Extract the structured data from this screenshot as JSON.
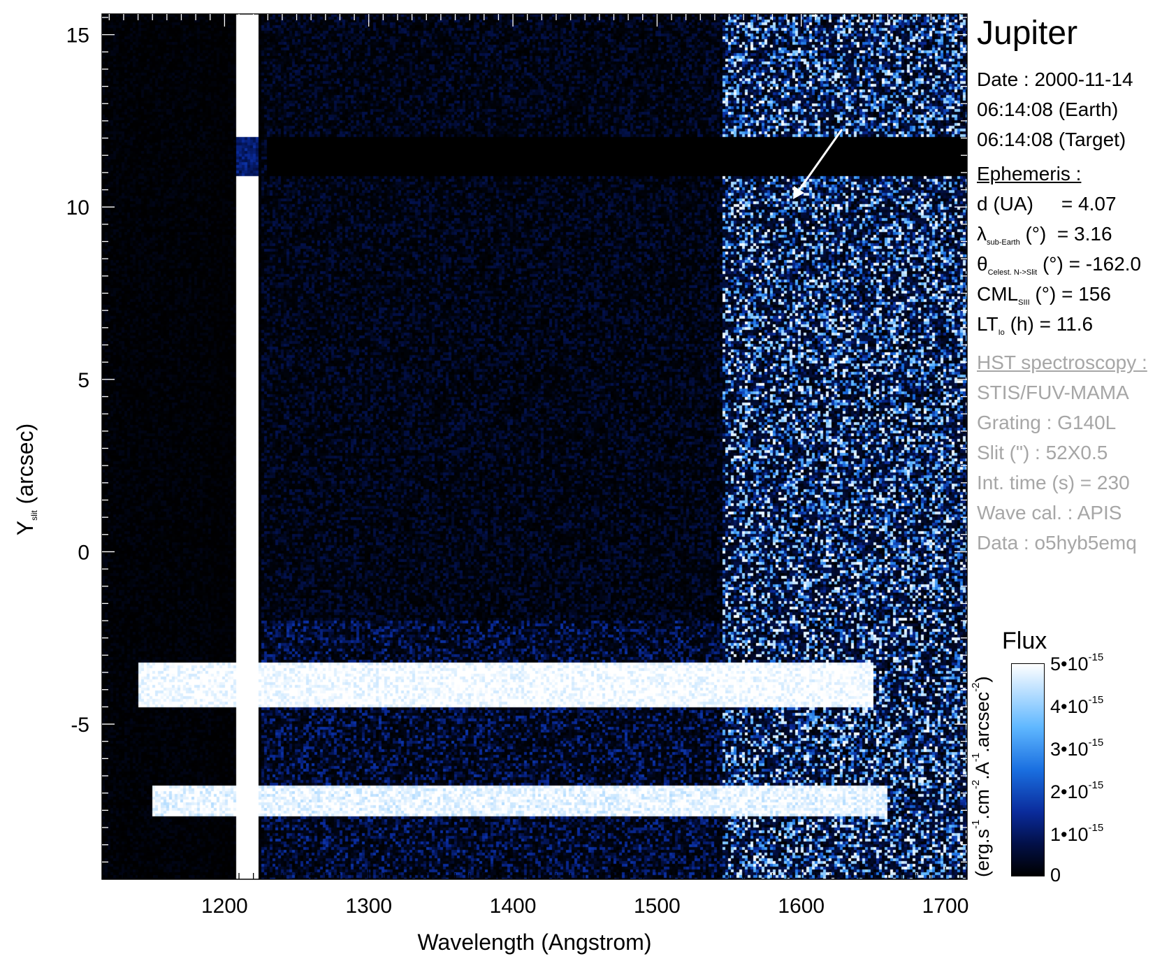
{
  "chart_data": {
    "type": "heatmap",
    "title": "Jupiter",
    "xlabel": "Wavelength (Angstrom)",
    "ylabel_main": "Y",
    "ylabel_sub": "slit",
    "ylabel_unit": "(arcsec)",
    "xlim": [
      1115,
      1715
    ],
    "ylim": [
      -9.5,
      15.6
    ],
    "x_ticks": [
      1200,
      1300,
      1400,
      1500,
      1600,
      1700
    ],
    "x_tick_labels": [
      "1200",
      "1300",
      "1400",
      "1500",
      "1600",
      "1700"
    ],
    "y_ticks": [
      15,
      10,
      5,
      0,
      -5
    ],
    "y_tick_labels": [
      "15",
      "10",
      "5",
      "0",
      "-5"
    ],
    "features": {
      "lyman_alpha_column_wavelength": 1216,
      "bright_band_1_y": -3.9,
      "bright_band_2_y": -7.2,
      "dark_gap_y": [
        10.9,
        12.0
      ],
      "bright_region_x_start": 1545
    },
    "colorbar": {
      "title": "Flux",
      "unit_label": "(erg.s-1.cm-2.A-1.arcsec-2)",
      "range": [
        0,
        5e-15
      ],
      "colors": [
        "#000000",
        "#021048",
        "#0a2b9b",
        "#1a6fe0",
        "#5fb7ff",
        "#c9e6ff",
        "#ffffff"
      ],
      "tick_values": [
        5e-15,
        4e-15,
        3e-15,
        2e-15,
        1e-15,
        0
      ],
      "ticks": [
        {
          "mant": "5•10",
          "exp": "-15"
        },
        {
          "mant": "4•10",
          "exp": "-15"
        },
        {
          "mant": "3•10",
          "exp": "-15"
        },
        {
          "mant": "2•10",
          "exp": "-15"
        },
        {
          "mant": "1•10",
          "exp": "-15"
        },
        {
          "mant": "0",
          "exp": ""
        }
      ]
    }
  },
  "panel": {
    "title": "Jupiter",
    "date": "Date : 2000-11-14",
    "time_earth": "06:14:08 (Earth)",
    "time_target": "06:14:08 (Target)",
    "ephemeris_heading": "Ephemeris :",
    "d_label": "d (UA)",
    "d_value": "= 4.07",
    "lambda_sym": "λ",
    "lambda_sub": "sub-Earth",
    "lambda_unit": "(°)",
    "lambda_value": "= 3.16",
    "theta_sym": "θ",
    "theta_sub": "Celest. N->Slit",
    "theta_unit": "(°)",
    "theta_value": "= -162.0",
    "cml_sym": "CML",
    "cml_sub": "SIII",
    "cml_unit": "(°)",
    "cml_value": "= 156",
    "lt_sym": "LT",
    "lt_sub": "Io",
    "lt_rest": "(h) = 11.6",
    "hst_heading": "HST spectroscopy :",
    "instrument": "STIS/FUV-MAMA",
    "grating": "Grating : G140L",
    "slit": "Slit (\") : 52X0.5",
    "int_time": "Int. time (s) = 230",
    "wave_cal": "Wave cal. : APIS",
    "data_id": "Data : o5hyb5emq"
  },
  "colorbar_text": {
    "title": "Flux",
    "unit_a": "(erg.s",
    "unit_b": ".cm",
    "unit_c": ".A",
    "unit_d": ".arcsec",
    "unit_e": ")",
    "exp_s": "-1",
    "exp_cm": "-2",
    "exp_a": "-1",
    "exp_arcsec": "-2"
  }
}
